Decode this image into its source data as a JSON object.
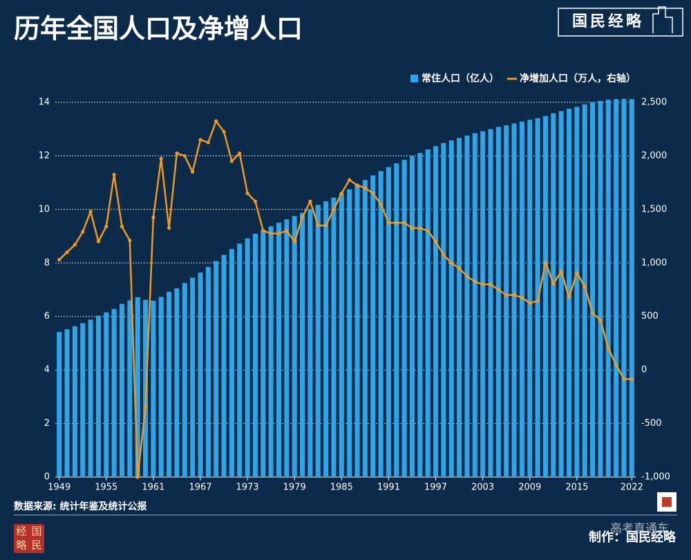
{
  "chart_data": {
    "type": "bar-line",
    "title": "历年全国人口及净增人口",
    "categories": [
      "1949",
      null,
      null,
      null,
      null,
      null,
      "1955",
      null,
      null,
      null,
      null,
      null,
      "1961",
      null,
      null,
      null,
      null,
      null,
      "1967",
      null,
      null,
      null,
      null,
      null,
      "1973",
      null,
      null,
      null,
      null,
      null,
      "1979",
      null,
      null,
      null,
      null,
      null,
      "1985",
      null,
      null,
      null,
      null,
      null,
      "1991",
      null,
      null,
      null,
      null,
      null,
      "1997",
      null,
      null,
      null,
      null,
      null,
      "2003",
      null,
      null,
      null,
      null,
      null,
      "2009",
      null,
      null,
      null,
      null,
      null,
      "2015",
      null,
      null,
      null,
      null,
      null,
      null,
      "2022"
    ],
    "series": [
      {
        "name": "常住人口（亿人）",
        "type": "bar",
        "color": "#2fa4e7",
        "values": [
          5.42,
          5.52,
          5.63,
          5.75,
          5.88,
          6.03,
          6.15,
          6.28,
          6.47,
          6.6,
          6.72,
          6.62,
          6.59,
          6.73,
          6.92,
          7.05,
          7.25,
          7.45,
          7.64,
          7.85,
          8.07,
          8.3,
          8.52,
          8.72,
          8.92,
          9.09,
          9.24,
          9.37,
          9.5,
          9.63,
          9.75,
          9.87,
          10.01,
          10.17,
          10.3,
          10.44,
          10.59,
          10.75,
          10.93,
          11.1,
          11.27,
          11.43,
          11.58,
          11.72,
          11.85,
          11.99,
          12.11,
          12.24,
          12.36,
          12.48,
          12.58,
          12.67,
          12.76,
          12.85,
          12.92,
          13.0,
          13.08,
          13.14,
          13.21,
          13.28,
          13.35,
          13.41,
          13.49,
          13.59,
          13.67,
          13.76,
          13.83,
          13.92,
          14.0,
          14.05,
          14.1,
          14.12,
          14.13,
          14.12
        ]
      },
      {
        "name": "净增加人口（万人，右轴）",
        "type": "line",
        "axis": "y2",
        "color": "#f39a1e",
        "values": [
          1030,
          1100,
          1170,
          1290,
          1480,
          1200,
          1340,
          1825,
          1340,
          1210,
          -1000,
          -350,
          1425,
          1975,
          1325,
          2025,
          2000,
          1850,
          2150,
          2125,
          2325,
          2225,
          1950,
          2025,
          1650,
          1575,
          1300,
          1275,
          1275,
          1300,
          1200,
          1425,
          1575,
          1350,
          1350,
          1500,
          1650,
          1775,
          1725,
          1700,
          1650,
          1550,
          1375,
          1375,
          1375,
          1325,
          1325,
          1300,
          1200,
          1075,
          1000,
          950,
          875,
          825,
          800,
          800,
          750,
          700,
          700,
          675,
          625,
          644,
          1006,
          804,
          920,
          680,
          906,
          779,
          530,
          467,
          204,
          48,
          -85,
          -85
        ]
      }
    ],
    "ylim": [
      0,
      14
    ],
    "yticks": [
      0,
      2,
      4,
      6,
      8,
      10,
      12,
      14
    ],
    "y2lim": [
      -1000,
      2500
    ],
    "y2ticks": [
      {
        "value": -1000,
        "label": "-1,000"
      },
      -500,
      0,
      500,
      {
        "value": 1000,
        "label": "1,000"
      },
      {
        "value": 1500,
        "label": "1,500"
      },
      {
        "value": 2000,
        "label": "2,000"
      },
      {
        "value": 2500,
        "label": "2,500"
      }
    ],
    "grid": true,
    "legend": "top-right"
  },
  "header": {
    "brand": "国民经略"
  },
  "footer": {
    "source": "数据来源: 统计年鉴及统计公报",
    "credit": "制作：国民经略",
    "watermark": "高考直通车",
    "seal": [
      "经",
      "国",
      "略",
      "民"
    ]
  }
}
